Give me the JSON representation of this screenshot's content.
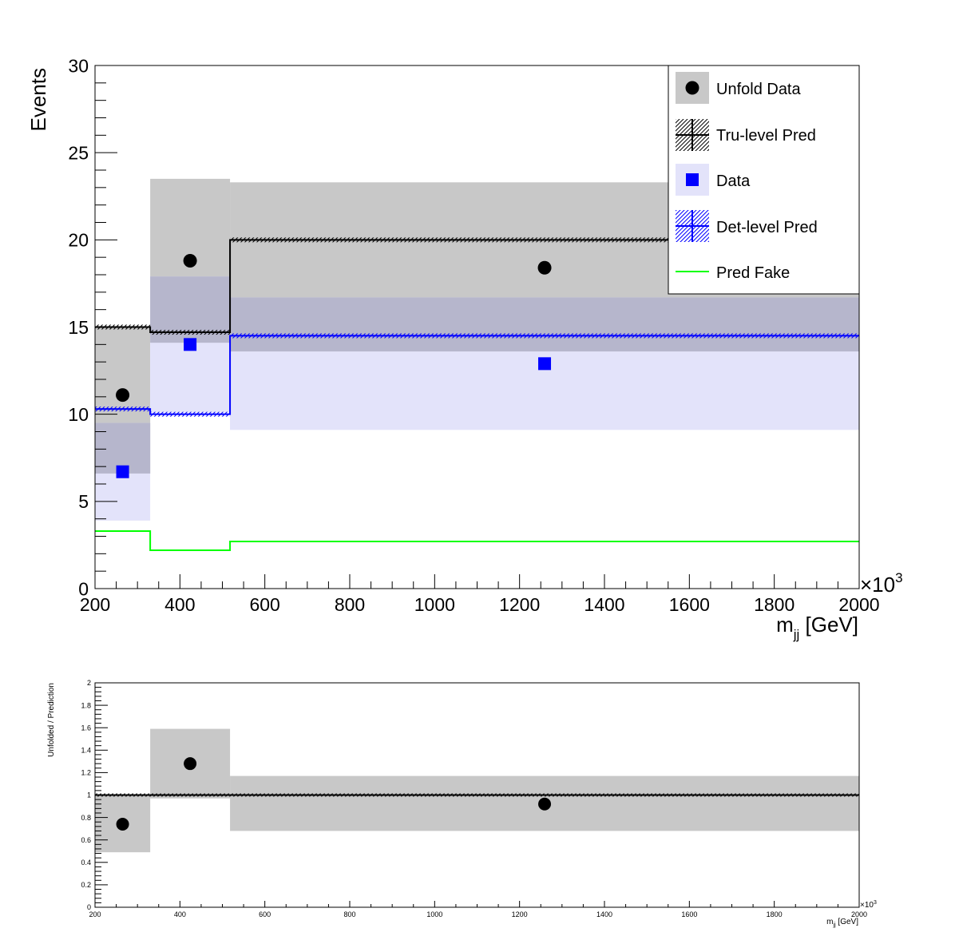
{
  "colors": {
    "unfold_band": "#c8c8c8",
    "data_band": "#e3e3fa",
    "overlap_band": "#b6b6cc",
    "truth": "#000000",
    "det": "#0000ff",
    "fake": "#00ff00"
  },
  "chart_data": [
    {
      "type": "histogram",
      "name": "main",
      "ylabel": "Events",
      "xlabel_main": "m",
      "xlabel_sub": "jj",
      "xlabel_unit": " [GeV]",
      "exponent_label": "×10",
      "exponent_power": "3",
      "xlim": [
        200,
        2000
      ],
      "ylim": [
        0,
        30
      ],
      "xticks": [
        200,
        400,
        600,
        800,
        1000,
        1200,
        1400,
        1600,
        1800,
        2000
      ],
      "yticks": [
        0,
        5,
        10,
        15,
        20,
        25,
        30
      ],
      "xtick_labels": [
        "200",
        "400",
        "600",
        "800",
        "1000",
        "1200",
        "1400",
        "1600",
        "1800",
        "2000"
      ],
      "ytick_labels": [
        "0",
        "5",
        "10",
        "15",
        "20",
        "25",
        "30"
      ],
      "bin_edges": [
        200,
        330,
        518,
        2000
      ],
      "unfold_data": {
        "x": [
          265,
          424,
          1259
        ],
        "y": [
          11.1,
          18.8,
          18.4
        ],
        "band_low": [
          6.6,
          14.1,
          13.6
        ],
        "band_high": [
          15.0,
          23.5,
          23.3
        ]
      },
      "truth_pred": [
        15.0,
        14.7,
        20.0
      ],
      "data": {
        "x": [
          265,
          424,
          1259
        ],
        "y": [
          6.7,
          14.0,
          12.9
        ],
        "band_low": [
          3.9,
          10.1,
          9.1
        ],
        "band_high": [
          9.5,
          17.9,
          16.7
        ]
      },
      "det_pred": [
        10.3,
        10.0,
        14.5
      ],
      "fake_pred": [
        3.3,
        2.2,
        2.7
      ],
      "legend": [
        {
          "label": "Unfold Data",
          "style": "unfold"
        },
        {
          "label": "Tru-level Pred",
          "style": "truth"
        },
        {
          "label": "Data",
          "style": "data"
        },
        {
          "label": "Det-level Pred",
          "style": "det"
        },
        {
          "label": "Pred Fake",
          "style": "fake"
        }
      ],
      "legend_position": "top-right"
    },
    {
      "type": "ratio",
      "name": "ratio",
      "ylabel": "Unfolded / Prediction",
      "xlabel_main": "m",
      "xlabel_sub": "jj",
      "xlabel_unit": " [GeV]",
      "exponent_label": "×10",
      "exponent_power": "3",
      "xlim": [
        200,
        2000
      ],
      "ylim": [
        0,
        2
      ],
      "xticks": [
        200,
        400,
        600,
        800,
        1000,
        1200,
        1400,
        1600,
        1800,
        2000
      ],
      "yticks": [
        0,
        0.2,
        0.4,
        0.6,
        0.8,
        1,
        1.2,
        1.4,
        1.6,
        1.8,
        2
      ],
      "xtick_labels": [
        "200",
        "400",
        "600",
        "800",
        "1000",
        "1200",
        "1400",
        "1600",
        "1800",
        "2000"
      ],
      "ytick_labels": [
        "0",
        "0.2",
        "0.4",
        "0.6",
        "0.8",
        "1",
        "1.2",
        "1.4",
        "1.6",
        "1.8",
        "2"
      ],
      "bin_edges": [
        200,
        330,
        518,
        2000
      ],
      "points": {
        "x": [
          265,
          424,
          1259
        ],
        "y": [
          0.74,
          1.28,
          0.92
        ]
      },
      "band_low": [
        0.49,
        0.97,
        0.68
      ],
      "band_high": [
        1.0,
        1.59,
        1.17
      ],
      "reference": 1.0
    }
  ]
}
